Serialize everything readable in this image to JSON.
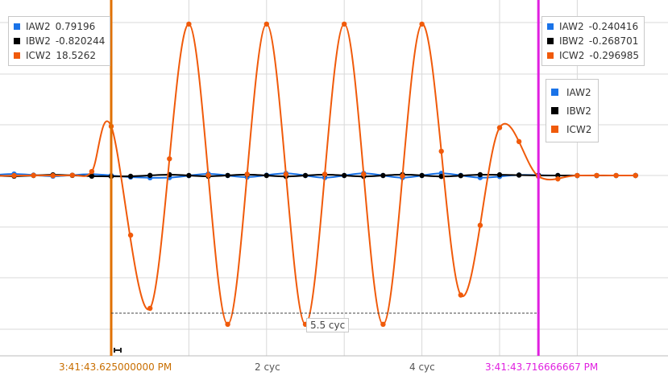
{
  "chart_data": {
    "type": "line",
    "x_unit": "cyc",
    "x_tick_labels": [
      {
        "x": 2,
        "label": "2 cyc"
      },
      {
        "x": 4,
        "label": "4 cyc"
      }
    ],
    "cursor_left": {
      "x": 0,
      "label": "3:41:43.625000000 PM",
      "color": "#e07000"
    },
    "cursor_right": {
      "x": 5.5,
      "label": "3:41:43.716666667 PM",
      "color": "#e020e0"
    },
    "delta_label": "5.5 cyc",
    "series": [
      {
        "name": "IAW2",
        "color": "#1a73e8",
        "values_at_left_cursor": "0.79196",
        "values_at_right_cursor": "-0.240416",
        "points": [
          [
            -2.75,
            -0.2
          ],
          [
            -2.25,
            0.55
          ],
          [
            -1.75,
            -0.2
          ],
          [
            -1.25,
            0.55
          ],
          [
            -0.75,
            -0.25
          ],
          [
            -0.25,
            0.5
          ],
          [
            0.25,
            -0.6
          ],
          [
            0.75,
            -0.8
          ],
          [
            1.25,
            0.6
          ],
          [
            1.75,
            -0.6
          ],
          [
            2.25,
            0.8
          ],
          [
            2.75,
            -0.8
          ],
          [
            3.25,
            0.8
          ],
          [
            3.75,
            -0.8
          ],
          [
            4.25,
            0.8
          ],
          [
            4.75,
            -0.8
          ],
          [
            5.25,
            0.2
          ],
          [
            5.75,
            0.0
          ],
          [
            6.75,
            0.0
          ]
        ]
      },
      {
        "name": "IBW2",
        "color": "#000000",
        "values_at_left_cursor": "-0.820244",
        "values_at_right_cursor": "-0.268701",
        "points": [
          [
            -2.75,
            0.2
          ],
          [
            -2.25,
            -0.3
          ],
          [
            -1.75,
            0.25
          ],
          [
            -1.25,
            -0.25
          ],
          [
            -0.75,
            0.25
          ],
          [
            -0.25,
            -0.25
          ],
          [
            0.25,
            -0.3
          ],
          [
            0.75,
            0.3
          ],
          [
            1.25,
            -0.3
          ],
          [
            1.75,
            0.35
          ],
          [
            2.25,
            -0.35
          ],
          [
            2.75,
            0.35
          ],
          [
            3.25,
            -0.35
          ],
          [
            3.75,
            0.35
          ],
          [
            4.25,
            -0.35
          ],
          [
            4.75,
            0.3
          ],
          [
            5.25,
            0.15
          ],
          [
            5.75,
            0.0
          ],
          [
            6.75,
            0.0
          ]
        ]
      },
      {
        "name": "ICW2",
        "color": "#f05a0a",
        "values_at_left_cursor": "18.5262",
        "values_at_right_cursor": "-0.296985",
        "points": [
          [
            -2.75,
            0.0
          ],
          [
            -2.0,
            0.1
          ],
          [
            -1.5,
            -0.1
          ],
          [
            -1.0,
            0.05
          ],
          [
            -0.5,
            0.1
          ],
          [
            -0.25,
            1.5
          ],
          [
            0.0,
            18.5
          ],
          [
            0.5,
            -50.0
          ],
          [
            1.0,
            57.0
          ],
          [
            1.5,
            -56.0
          ],
          [
            2.0,
            57.0
          ],
          [
            2.5,
            -56.0
          ],
          [
            3.0,
            57.0
          ],
          [
            3.5,
            -56.0
          ],
          [
            4.0,
            57.0
          ],
          [
            4.5,
            -45.0
          ],
          [
            5.0,
            18.0
          ],
          [
            5.5,
            -0.3
          ],
          [
            6.0,
            0.0
          ],
          [
            6.75,
            0.0
          ]
        ]
      }
    ],
    "ylim": [
      -70,
      64
    ],
    "xlim": [
      -2.85,
      6.85
    ],
    "grid": true
  }
}
